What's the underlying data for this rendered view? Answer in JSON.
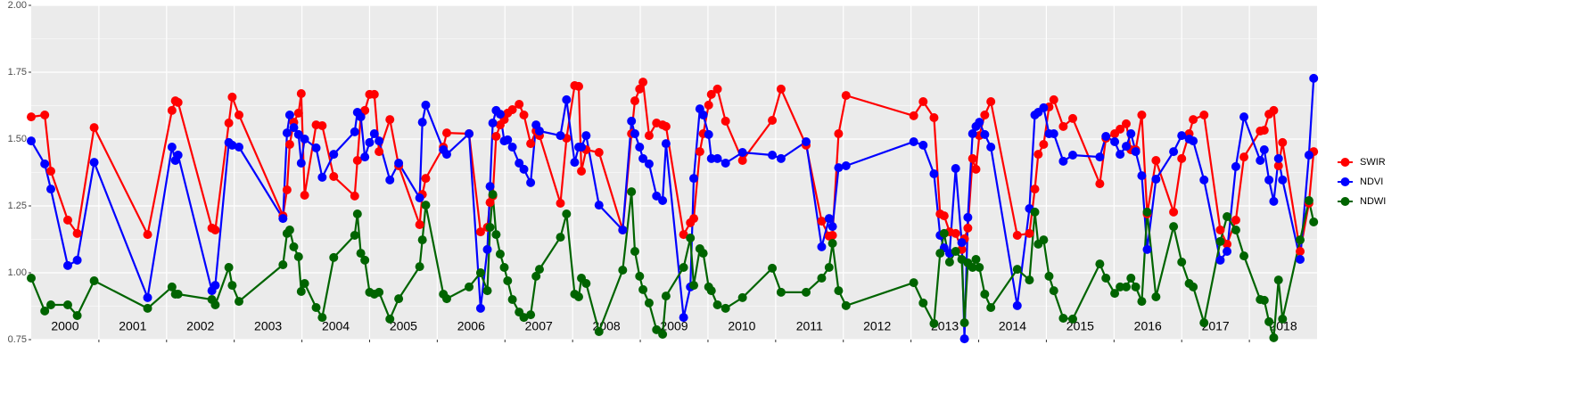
{
  "chart_data": {
    "type": "line",
    "x": [
      2000.0,
      2000.2,
      2000.29,
      2000.54,
      2000.68,
      2000.93,
      2001.72,
      2002.08,
      2002.13,
      2002.17,
      2002.67,
      2002.72,
      2002.92,
      2002.97,
      2003.07,
      2003.72,
      2003.78,
      2003.82,
      2003.88,
      2003.95,
      2003.99,
      2004.04,
      2004.21,
      2004.3,
      2004.47,
      2004.78,
      2004.82,
      2004.87,
      2004.93,
      2005.0,
      2005.07,
      2005.14,
      2005.3,
      2005.43,
      2005.74,
      2005.78,
      2005.83,
      2006.09,
      2006.14,
      2006.47,
      2006.64,
      2006.74,
      2006.78,
      2006.82,
      2006.87,
      2006.93,
      2006.99,
      2007.04,
      2007.11,
      2007.21,
      2007.28,
      2007.38,
      2007.46,
      2007.51,
      2007.82,
      2007.91,
      2008.03,
      2008.09,
      2008.13,
      2008.2,
      2008.39,
      2008.74,
      2008.87,
      2008.92,
      2008.99,
      2009.04,
      2009.13,
      2009.24,
      2009.33,
      2009.38,
      2009.64,
      2009.74,
      2009.79,
      2009.88,
      2009.93,
      2010.01,
      2010.05,
      2010.14,
      2010.26,
      2010.51,
      2010.95,
      2011.08,
      2011.45,
      2011.68,
      2011.79,
      2011.84,
      2011.93,
      2012.04,
      2013.04,
      2013.18,
      2013.34,
      2013.43,
      2013.49,
      2013.57,
      2013.66,
      2013.75,
      2013.79,
      2013.84,
      2013.91,
      2013.96,
      2014.01,
      2014.09,
      2014.18,
      2014.57,
      2014.75,
      2014.83,
      2014.88,
      2014.96,
      2015.04,
      2015.11,
      2015.25,
      2015.39,
      2015.79,
      2015.88,
      2016.01,
      2016.09,
      2016.18,
      2016.25,
      2016.32,
      2016.41,
      2016.49,
      2016.62,
      2016.88,
      2017.0,
      2017.11,
      2017.17,
      2017.33,
      2017.57,
      2017.67,
      2017.8,
      2017.92,
      2018.16,
      2018.22,
      2018.29,
      2018.36,
      2018.43,
      2018.49,
      2018.75,
      2018.88,
      2018.95
    ],
    "series": [
      {
        "name": "SWIR",
        "color": "#ff0000",
        "values": [
          1.583,
          1.59,
          1.38,
          1.197,
          1.147,
          1.543,
          1.143,
          1.607,
          1.643,
          1.637,
          1.167,
          1.16,
          1.56,
          1.657,
          1.59,
          1.213,
          1.31,
          1.48,
          1.563,
          1.597,
          1.67,
          1.29,
          1.553,
          1.55,
          1.36,
          1.287,
          1.42,
          1.587,
          1.607,
          1.667,
          1.667,
          1.453,
          1.573,
          1.4,
          1.18,
          1.293,
          1.353,
          1.47,
          1.523,
          1.52,
          1.153,
          1.17,
          1.263,
          1.287,
          1.51,
          1.553,
          1.573,
          1.597,
          1.61,
          1.63,
          1.59,
          1.483,
          1.53,
          1.513,
          1.26,
          1.503,
          1.7,
          1.697,
          1.38,
          1.46,
          1.45,
          1.16,
          1.52,
          1.643,
          1.687,
          1.713,
          1.513,
          1.56,
          1.553,
          1.547,
          1.143,
          1.187,
          1.203,
          1.453,
          1.52,
          1.627,
          1.667,
          1.687,
          1.567,
          1.42,
          1.57,
          1.687,
          1.477,
          1.193,
          1.137,
          1.14,
          1.52,
          1.663,
          1.587,
          1.64,
          1.58,
          1.22,
          1.213,
          1.153,
          1.147,
          1.087,
          1.127,
          1.167,
          1.427,
          1.387,
          1.513,
          1.59,
          1.64,
          1.14,
          1.147,
          1.313,
          1.443,
          1.48,
          1.62,
          1.647,
          1.547,
          1.577,
          1.333,
          1.503,
          1.52,
          1.537,
          1.557,
          1.46,
          1.46,
          1.59,
          1.22,
          1.42,
          1.227,
          1.427,
          1.52,
          1.573,
          1.59,
          1.16,
          1.107,
          1.197,
          1.433,
          1.53,
          1.533,
          1.593,
          1.607,
          1.4,
          1.487,
          1.08,
          1.26,
          1.453
        ]
      },
      {
        "name": "NDVI",
        "color": "#0000ff",
        "values": [
          1.493,
          1.407,
          1.313,
          1.027,
          1.047,
          1.413,
          0.907,
          1.47,
          1.42,
          1.44,
          0.933,
          0.953,
          1.487,
          1.477,
          1.47,
          1.203,
          1.523,
          1.59,
          1.543,
          1.517,
          1.41,
          1.5,
          1.467,
          1.357,
          1.443,
          1.527,
          1.6,
          1.583,
          1.433,
          1.487,
          1.52,
          1.493,
          1.347,
          1.41,
          1.28,
          1.563,
          1.627,
          1.46,
          1.443,
          1.52,
          0.867,
          1.087,
          1.323,
          1.56,
          1.607,
          1.593,
          1.493,
          1.497,
          1.47,
          1.41,
          1.387,
          1.337,
          1.553,
          1.53,
          1.513,
          1.647,
          1.413,
          1.47,
          1.47,
          1.513,
          1.253,
          1.16,
          1.567,
          1.52,
          1.47,
          1.427,
          1.407,
          1.287,
          1.27,
          1.483,
          0.833,
          0.947,
          1.353,
          1.613,
          1.59,
          1.517,
          1.427,
          1.427,
          1.41,
          1.45,
          1.44,
          1.427,
          1.49,
          1.097,
          1.203,
          1.173,
          1.393,
          1.4,
          1.49,
          1.477,
          1.37,
          1.14,
          1.093,
          1.073,
          1.39,
          1.113,
          0.753,
          1.207,
          1.52,
          1.547,
          1.563,
          1.517,
          1.47,
          0.877,
          1.24,
          1.59,
          1.6,
          1.617,
          1.52,
          1.52,
          1.417,
          1.44,
          1.433,
          1.51,
          1.49,
          1.443,
          1.473,
          1.52,
          1.453,
          1.363,
          1.087,
          1.35,
          1.453,
          1.513,
          1.5,
          1.493,
          1.347,
          1.047,
          1.08,
          1.397,
          1.583,
          1.42,
          1.46,
          1.347,
          1.267,
          1.427,
          1.347,
          1.05,
          1.44,
          1.727
        ]
      },
      {
        "name": "NDWI",
        "color": "#006400",
        "values": [
          0.98,
          0.857,
          0.88,
          0.88,
          0.84,
          0.97,
          0.867,
          0.947,
          0.92,
          0.92,
          0.9,
          0.88,
          1.02,
          0.953,
          0.893,
          1.03,
          1.147,
          1.16,
          1.097,
          1.06,
          0.93,
          0.96,
          0.87,
          0.833,
          1.057,
          1.14,
          1.22,
          1.073,
          1.047,
          0.927,
          0.92,
          0.927,
          0.827,
          0.903,
          1.023,
          1.123,
          1.253,
          0.92,
          0.903,
          0.947,
          1.0,
          0.933,
          1.17,
          1.293,
          1.143,
          1.07,
          1.02,
          0.97,
          0.9,
          0.853,
          0.833,
          0.843,
          0.987,
          1.013,
          1.133,
          1.22,
          0.92,
          0.91,
          0.98,
          0.96,
          0.78,
          1.01,
          1.303,
          1.08,
          0.987,
          0.937,
          0.887,
          0.787,
          0.77,
          0.913,
          1.02,
          1.13,
          0.953,
          1.09,
          1.073,
          0.947,
          0.933,
          0.88,
          0.867,
          0.907,
          1.017,
          0.927,
          0.927,
          0.98,
          1.02,
          1.11,
          0.933,
          0.877,
          0.963,
          0.887,
          0.81,
          1.073,
          1.147,
          1.04,
          1.08,
          1.05,
          0.813,
          1.037,
          1.02,
          1.05,
          1.02,
          0.92,
          0.87,
          1.013,
          0.973,
          1.227,
          1.107,
          1.123,
          0.987,
          0.933,
          0.83,
          0.827,
          1.033,
          0.98,
          0.923,
          0.947,
          0.947,
          0.98,
          0.947,
          0.893,
          1.227,
          0.91,
          1.173,
          1.04,
          0.96,
          0.947,
          0.813,
          1.117,
          1.21,
          1.16,
          1.063,
          0.9,
          0.897,
          0.817,
          0.757,
          0.973,
          0.827,
          1.123,
          1.27,
          1.19
        ]
      }
    ],
    "xlim": [
      2000,
      2019
    ],
    "xticks": [
      2001,
      2002,
      2003,
      2004,
      2005,
      2006,
      2007,
      2008,
      2009,
      2010,
      2011,
      2012,
      2013,
      2014,
      2015,
      2016,
      2017,
      2018
    ],
    "year_labels": [
      {
        "value": 2000.5,
        "label": "2000"
      },
      {
        "value": 2001.5,
        "label": "2001"
      },
      {
        "value": 2002.5,
        "label": "2002"
      },
      {
        "value": 2003.5,
        "label": "2003"
      },
      {
        "value": 2004.5,
        "label": "2004"
      },
      {
        "value": 2005.5,
        "label": "2005"
      },
      {
        "value": 2006.5,
        "label": "2006"
      },
      {
        "value": 2007.5,
        "label": "2007"
      },
      {
        "value": 2008.5,
        "label": "2008"
      },
      {
        "value": 2009.5,
        "label": "2009"
      },
      {
        "value": 2010.5,
        "label": "2010"
      },
      {
        "value": 2011.5,
        "label": "2011"
      },
      {
        "value": 2012.5,
        "label": "2012"
      },
      {
        "value": 2013.5,
        "label": "2013"
      },
      {
        "value": 2014.5,
        "label": "2014"
      },
      {
        "value": 2015.5,
        "label": "2015"
      },
      {
        "value": 2016.5,
        "label": "2016"
      },
      {
        "value": 2017.5,
        "label": "2017"
      },
      {
        "value": 2018.5,
        "label": "2018"
      }
    ],
    "ylim": [
      0.75,
      2.0
    ],
    "yticks": [
      0.75,
      {
        "value": 1.0,
        "label": "1.00"
      },
      1.25,
      {
        "value": 1.5,
        "label": "1.50"
      },
      1.75,
      {
        "value": 2.0,
        "label": "2.00"
      }
    ],
    "grid": true,
    "legend": "right"
  }
}
